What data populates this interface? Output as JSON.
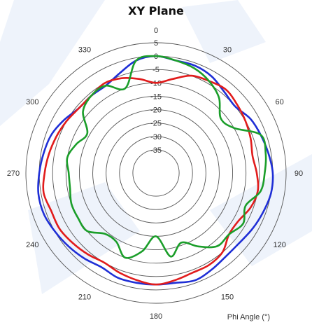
{
  "chart_data": {
    "type": "line",
    "subtype": "polar",
    "title": "XY Plane",
    "angle_axis_label": "Phi Angle (°)",
    "angle_ticks": [
      0,
      30,
      60,
      90,
      120,
      150,
      180,
      210,
      240,
      270,
      300,
      330
    ],
    "radial_ticks": [
      5,
      0,
      -5,
      -10,
      -15,
      -20,
      -25,
      -30,
      -35
    ],
    "rlim": [
      -40,
      5
    ],
    "grid": true,
    "angle_direction": "clockwise",
    "zero_angle": "top",
    "series": [
      {
        "color": "#1f2fd6",
        "points": [
          [
            0,
            0
          ],
          [
            10,
            -1
          ],
          [
            20,
            -1
          ],
          [
            30,
            -2
          ],
          [
            40,
            -4
          ],
          [
            50,
            -5
          ],
          [
            60,
            -3
          ],
          [
            70,
            -2
          ],
          [
            80,
            -1
          ],
          [
            90,
            0
          ],
          [
            100,
            0
          ],
          [
            110,
            -1
          ],
          [
            120,
            -2
          ],
          [
            130,
            -3
          ],
          [
            140,
            -3
          ],
          [
            150,
            -2
          ],
          [
            160,
            -1
          ],
          [
            170,
            -2
          ],
          [
            180,
            -2
          ],
          [
            190,
            -2
          ],
          [
            200,
            -2
          ],
          [
            210,
            -3
          ],
          [
            220,
            -2
          ],
          [
            230,
            -1
          ],
          [
            240,
            0
          ],
          [
            250,
            1
          ],
          [
            260,
            1
          ],
          [
            270,
            0
          ],
          [
            280,
            -1
          ],
          [
            290,
            -2
          ],
          [
            300,
            -4
          ],
          [
            310,
            -6
          ],
          [
            320,
            -6
          ],
          [
            330,
            -6
          ],
          [
            340,
            -4
          ],
          [
            350,
            -1
          ]
        ]
      },
      {
        "color": "#e11c1c",
        "points": [
          [
            0,
            -10
          ],
          [
            10,
            -8
          ],
          [
            20,
            -5
          ],
          [
            30,
            -4
          ],
          [
            40,
            -3
          ],
          [
            50,
            -4
          ],
          [
            60,
            -5
          ],
          [
            70,
            -6
          ],
          [
            80,
            -7
          ],
          [
            90,
            -6
          ],
          [
            100,
            -5
          ],
          [
            110,
            -6
          ],
          [
            120,
            -8
          ],
          [
            130,
            -8
          ],
          [
            140,
            -5
          ],
          [
            150,
            -4
          ],
          [
            160,
            -4
          ],
          [
            170,
            -3
          ],
          [
            180,
            -2
          ],
          [
            190,
            -3
          ],
          [
            200,
            -4
          ],
          [
            210,
            -5
          ],
          [
            220,
            -4
          ],
          [
            230,
            -3
          ],
          [
            240,
            -2
          ],
          [
            250,
            -2
          ],
          [
            260,
            -1
          ],
          [
            270,
            -2
          ],
          [
            280,
            -3
          ],
          [
            290,
            -4
          ],
          [
            300,
            -5
          ],
          [
            310,
            -6
          ],
          [
            320,
            -6
          ],
          [
            330,
            -5
          ],
          [
            340,
            -6
          ],
          [
            350,
            -8
          ]
        ]
      },
      {
        "color": "#1b9e2a",
        "points": [
          [
            0,
            0
          ],
          [
            10,
            -1
          ],
          [
            20,
            -2
          ],
          [
            30,
            -4
          ],
          [
            40,
            -7
          ],
          [
            50,
            -12
          ],
          [
            60,
            -10
          ],
          [
            70,
            -2
          ],
          [
            80,
            -2
          ],
          [
            90,
            -3
          ],
          [
            100,
            -4
          ],
          [
            110,
            -8
          ],
          [
            120,
            -6
          ],
          [
            130,
            -8
          ],
          [
            140,
            -8
          ],
          [
            150,
            -12
          ],
          [
            160,
            -16
          ],
          [
            170,
            -12
          ],
          [
            180,
            -20
          ],
          [
            190,
            -14
          ],
          [
            200,
            -10
          ],
          [
            210,
            -14
          ],
          [
            220,
            -14
          ],
          [
            230,
            -10
          ],
          [
            240,
            -10
          ],
          [
            250,
            -10
          ],
          [
            260,
            -11
          ],
          [
            270,
            -11
          ],
          [
            280,
            -10
          ],
          [
            290,
            -12
          ],
          [
            300,
            -14
          ],
          [
            310,
            -8
          ],
          [
            320,
            -6
          ],
          [
            330,
            -6
          ],
          [
            340,
            -10
          ],
          [
            350,
            -1
          ]
        ]
      }
    ]
  }
}
